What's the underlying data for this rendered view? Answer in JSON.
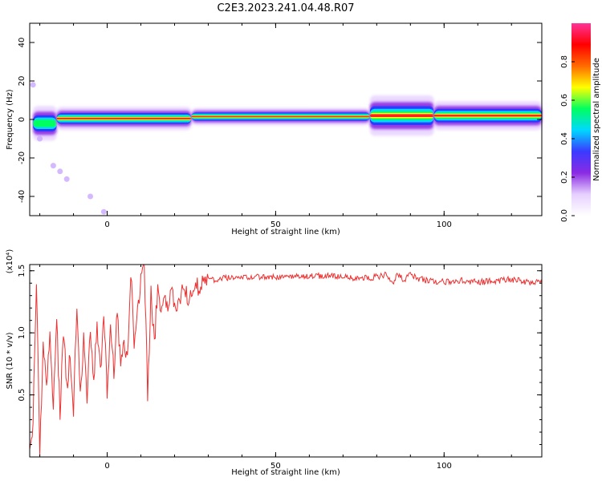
{
  "title": "C2E3.2023.241.04.48.R07",
  "colors": {
    "snr_line": "#ee3030",
    "axis": "#000000",
    "background": "#ffffff"
  },
  "chart_data": [
    {
      "type": "heatmap",
      "xlabel": "Height of straight line (km)",
      "ylabel": "Frequency (Hz)",
      "xlim": [
        -23,
        129
      ],
      "ylim": [
        -50,
        50
      ],
      "x_ticks": [
        0,
        50,
        100
      ],
      "y_ticks": [
        40,
        20,
        0,
        -20,
        -40
      ],
      "colorbar": {
        "label": "Normalized spectral amplitude",
        "range": [
          0,
          1
        ],
        "ticks": [
          "0.0",
          "0.2",
          "0.4",
          "0.6",
          "0.8"
        ],
        "colormap": [
          "#ffffff",
          "#e6d0ff",
          "#8a2be2",
          "#3a3aff",
          "#00d8ff",
          "#00ff60",
          "#ffff00",
          "#ff6a00",
          "#ff0000",
          "#ff3399"
        ]
      },
      "ridge": {
        "frequency_hz": 2,
        "segments": [
          {
            "x": [
              -22,
              -15
            ],
            "freq": -2,
            "width_hz": 6,
            "peak": 0.5
          },
          {
            "x": [
              -15,
              25
            ],
            "freq": 0.5,
            "width_hz": 4,
            "peak": 0.9
          },
          {
            "x": [
              25,
              78
            ],
            "freq": 1.5,
            "width_hz": 3,
            "peak": 1.0
          },
          {
            "x": [
              78,
              97
            ],
            "freq": 2,
            "width_hz": 7,
            "peak": 0.75
          },
          {
            "x": [
              97,
              129
            ],
            "freq": 2,
            "width_hz": 5,
            "peak": 0.85
          }
        ],
        "scatter_points": [
          [
            -20,
            -10
          ],
          [
            -16,
            -24
          ],
          [
            -14,
            -27
          ],
          [
            -12,
            -31
          ],
          [
            -5,
            -40
          ],
          [
            -1,
            -48
          ],
          [
            -22,
            18
          ]
        ]
      }
    },
    {
      "type": "line",
      "xlabel": "Height of straight line (km)",
      "ylabel": "SNR (10 * v/v)",
      "y_exponent": "(x10⁴)",
      "xlim": [
        -23,
        129
      ],
      "ylim": [
        0,
        1.55
      ],
      "x_ticks": [
        0,
        50,
        100
      ],
      "y_ticks": [
        "0.5",
        "1.0",
        "1.5"
      ],
      "series": [
        {
          "x": [
            -23,
            -22,
            -21,
            -20,
            -19,
            -18,
            -17,
            -16,
            -15,
            -14,
            -13,
            -12,
            -11,
            -10,
            -9,
            -8,
            -7,
            -6,
            -5,
            -4,
            -3,
            -2,
            -1,
            0,
            1,
            2,
            3,
            4,
            5,
            6,
            7,
            8,
            9,
            10,
            11,
            12,
            13,
            14,
            15,
            16,
            17,
            18,
            19,
            20,
            21,
            22,
            23,
            24,
            25,
            26,
            27,
            28,
            29,
            30,
            32,
            35,
            40,
            45,
            50,
            55,
            60,
            65,
            70,
            75,
            80,
            83,
            85,
            86,
            88,
            90,
            92,
            95,
            100,
            105,
            110,
            115,
            120,
            125,
            129
          ],
          "y": [
            0.05,
            0.3,
            1.4,
            0.05,
            0.9,
            0.6,
            1.0,
            0.45,
            1.1,
            0.35,
            1.05,
            0.55,
            0.85,
            0.4,
            1.2,
            0.5,
            0.95,
            0.45,
            1.0,
            0.6,
            1.1,
            0.65,
            1.2,
            0.55,
            1.0,
            0.7,
            1.15,
            0.75,
            0.95,
            0.8,
            1.5,
            0.9,
            1.2,
            1.4,
            1.55,
            0.5,
            1.3,
            0.9,
            1.4,
            1.1,
            1.3,
            1.15,
            1.38,
            1.2,
            1.25,
            1.3,
            1.35,
            1.28,
            1.32,
            1.36,
            1.38,
            1.4,
            1.41,
            1.42,
            1.43,
            1.44,
            1.44,
            1.45,
            1.45,
            1.45,
            1.46,
            1.46,
            1.45,
            1.44,
            1.45,
            1.47,
            1.4,
            1.48,
            1.42,
            1.47,
            1.44,
            1.42,
            1.41,
            1.42,
            1.41,
            1.42,
            1.43,
            1.41,
            1.4
          ]
        }
      ]
    }
  ]
}
